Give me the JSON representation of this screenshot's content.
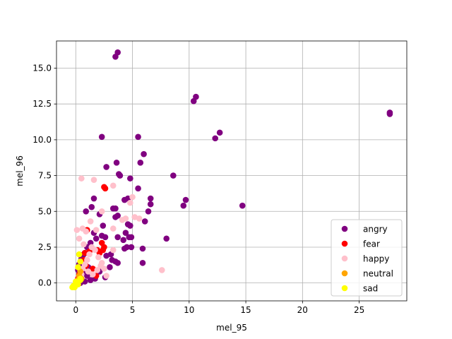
{
  "chart_data": {
    "type": "scatter",
    "title": "",
    "xlabel": "mel_95",
    "ylabel": "mel_96",
    "xlim": [
      -1.7,
      29.2
    ],
    "ylim": [
      -1.25,
      16.9
    ],
    "xticks": [
      0,
      5,
      10,
      15,
      20,
      25
    ],
    "yticks": [
      0.0,
      2.5,
      5.0,
      7.5,
      10.0,
      12.5,
      15.0
    ],
    "xtick_labels": [
      "0",
      "5",
      "10",
      "15",
      "20",
      "25"
    ],
    "ytick_labels": [
      "0.0",
      "2.5",
      "5.0",
      "7.5",
      "10.0",
      "12.5",
      "15.0"
    ],
    "grid": true,
    "legend_position": "lower right",
    "series": [
      {
        "name": "angry",
        "color": "#800080",
        "points": [
          [
            3.5,
            15.8
          ],
          [
            3.7,
            16.1
          ],
          [
            10.4,
            12.7
          ],
          [
            10.6,
            13.0
          ],
          [
            12.3,
            10.1
          ],
          [
            12.7,
            10.5
          ],
          [
            27.7,
            11.8
          ],
          [
            27.7,
            11.9
          ],
          [
            2.3,
            10.2
          ],
          [
            5.5,
            10.2
          ],
          [
            6.0,
            9.0
          ],
          [
            2.7,
            8.1
          ],
          [
            3.6,
            8.4
          ],
          [
            5.7,
            8.4
          ],
          [
            3.8,
            7.6
          ],
          [
            3.9,
            7.5
          ],
          [
            4.8,
            7.3
          ],
          [
            5.5,
            6.6
          ],
          [
            8.6,
            7.5
          ],
          [
            9.7,
            5.8
          ],
          [
            9.5,
            5.4
          ],
          [
            14.7,
            5.4
          ],
          [
            6.6,
            5.9
          ],
          [
            6.6,
            5.5
          ],
          [
            6.4,
            5.0
          ],
          [
            6.1,
            4.3
          ],
          [
            4.6,
            5.9
          ],
          [
            4.3,
            5.8
          ],
          [
            1.6,
            5.9
          ],
          [
            1.4,
            5.3
          ],
          [
            0.9,
            5.0
          ],
          [
            3.5,
            5.2
          ],
          [
            3.3,
            5.2
          ],
          [
            3.5,
            4.6
          ],
          [
            3.7,
            4.7
          ],
          [
            4.6,
            4.1
          ],
          [
            4.8,
            4.0
          ],
          [
            2.4,
            4.0
          ],
          [
            2.1,
            4.8
          ],
          [
            8.0,
            3.1
          ],
          [
            4.4,
            3.5
          ],
          [
            4.7,
            3.2
          ],
          [
            4.9,
            3.2
          ],
          [
            4.2,
            3.0
          ],
          [
            3.7,
            3.2
          ],
          [
            4.3,
            2.4
          ],
          [
            4.5,
            2.5
          ],
          [
            4.9,
            2.5
          ],
          [
            5.9,
            2.4
          ],
          [
            5.9,
            1.4
          ],
          [
            3.7,
            1.4
          ],
          [
            3.5,
            1.5
          ],
          [
            3.2,
            1.6
          ],
          [
            3.1,
            2.0
          ],
          [
            2.7,
            1.9
          ],
          [
            2.6,
            3.2
          ],
          [
            2.3,
            3.3
          ],
          [
            1.8,
            3.1
          ],
          [
            1.6,
            3.5
          ],
          [
            1.3,
            2.8
          ],
          [
            1.0,
            2.5
          ],
          [
            0.7,
            2.0
          ],
          [
            0.5,
            1.7
          ],
          [
            0.3,
            1.3
          ],
          [
            0.2,
            0.9
          ],
          [
            0.6,
            0.7
          ],
          [
            1.0,
            0.5
          ],
          [
            1.3,
            0.2
          ],
          [
            1.7,
            0.3
          ],
          [
            2.1,
            0.8
          ],
          [
            2.6,
            0.4
          ],
          [
            3.0,
            1.1
          ],
          [
            0.4,
            0.0
          ],
          [
            0.8,
            0.1
          ],
          [
            1.1,
            1.1
          ]
        ]
      },
      {
        "name": "fear",
        "color": "#ff0000",
        "points": [
          [
            2.5,
            6.7
          ],
          [
            2.6,
            6.6
          ],
          [
            1.0,
            3.7
          ],
          [
            2.3,
            2.8
          ],
          [
            2.5,
            2.5
          ],
          [
            2.4,
            2.3
          ],
          [
            2.1,
            2.1
          ],
          [
            1.9,
            2.3
          ],
          [
            1.2,
            2.2
          ],
          [
            0.8,
            2.1
          ],
          [
            0.7,
            1.6
          ],
          [
            0.9,
            1.2
          ],
          [
            1.5,
            1.0
          ],
          [
            1.8,
            0.5
          ],
          [
            0.5,
            0.9
          ],
          [
            0.3,
            0.6
          ],
          [
            0.2,
            0.3
          ]
        ]
      },
      {
        "name": "happy",
        "color": "#ffc0cb",
        "points": [
          [
            0.5,
            7.3
          ],
          [
            1.6,
            7.2
          ],
          [
            3.3,
            6.8
          ],
          [
            5.0,
            6.0
          ],
          [
            4.8,
            5.6
          ],
          [
            2.3,
            5.0
          ],
          [
            0.6,
            3.8
          ],
          [
            0.1,
            3.7
          ],
          [
            1.3,
            4.3
          ],
          [
            4.1,
            4.4
          ],
          [
            4.4,
            4.5
          ],
          [
            5.2,
            4.6
          ],
          [
            5.6,
            4.5
          ],
          [
            3.3,
            3.8
          ],
          [
            1.8,
            3.7
          ],
          [
            0.9,
            3.6
          ],
          [
            0.3,
            3.1
          ],
          [
            7.6,
            0.9
          ],
          [
            3.3,
            2.3
          ],
          [
            2.7,
            0.5
          ],
          [
            2.5,
            1.0
          ],
          [
            2.3,
            1.4
          ],
          [
            2.0,
            1.8
          ],
          [
            1.7,
            2.3
          ],
          [
            1.4,
            2.5
          ],
          [
            1.2,
            2.0
          ],
          [
            1.0,
            1.6
          ],
          [
            0.8,
            1.3
          ],
          [
            0.6,
            1.0
          ],
          [
            0.5,
            0.6
          ],
          [
            0.3,
            0.3
          ],
          [
            0.1,
            0.1
          ],
          [
            1.1,
            0.8
          ],
          [
            1.5,
            0.6
          ],
          [
            1.9,
            0.9
          ],
          [
            2.2,
            1.2
          ],
          [
            0.7,
            2.7
          ]
        ]
      },
      {
        "name": "neutral",
        "color": "#ffa500",
        "points": [
          [
            0.4,
            0.8
          ],
          [
            0.3,
            0.5
          ],
          [
            0.2,
            0.2
          ],
          [
            0.1,
            0.0
          ],
          [
            0.5,
            0.3
          ],
          [
            0.0,
            -0.1
          ]
        ]
      },
      {
        "name": "sad",
        "color": "#ffff00",
        "points": [
          [
            0.3,
            2.0
          ],
          [
            0.4,
            1.5
          ],
          [
            0.2,
            1.1
          ],
          [
            0.4,
            0.3
          ],
          [
            0.4,
            0.2
          ],
          [
            0.0,
            0.1
          ],
          [
            0.1,
            -0.1
          ],
          [
            -0.1,
            -0.2
          ],
          [
            -0.2,
            -0.2
          ],
          [
            -0.3,
            -0.3
          ],
          [
            -0.1,
            -0.3
          ],
          [
            0.2,
            -0.1
          ]
        ]
      }
    ]
  }
}
